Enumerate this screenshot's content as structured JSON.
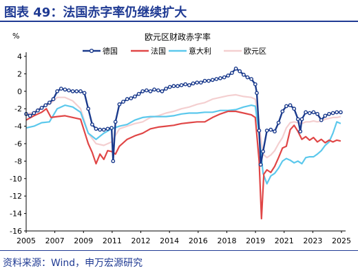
{
  "figure": {
    "title": "图表 49：法国赤字率仍继续扩大",
    "source": "资料来源：Wind，申万宏源研究",
    "unit": "%"
  },
  "colors": {
    "brand": "#1f3a93",
    "germany": "#1a3a8c",
    "france": "#e04646",
    "italy": "#5bc8ec",
    "eurozone": "#f4cfd0"
  },
  "chart_data": {
    "type": "line",
    "title": "欧元区财政赤字率",
    "xlabel": "",
    "ylabel": "%",
    "xlim": [
      2005.0,
      2025.3
    ],
    "ylim": [
      -16,
      4
    ],
    "xticks": [
      "2005",
      "2007",
      "2009",
      "2011",
      "2012",
      "2014",
      "2016",
      "2018",
      "2019",
      "2021",
      "2023",
      "2025"
    ],
    "yticks": [
      4,
      2,
      0,
      -2,
      -4,
      -6,
      -8,
      -10,
      -12,
      -14,
      -16
    ],
    "grid": false,
    "legend_position": "top",
    "series": [
      {
        "name": "德国",
        "color": "#1a3a8c",
        "marker": "circle",
        "points": [
          [
            2005.0,
            -2.6
          ],
          [
            2005.25,
            -2.8
          ],
          [
            2005.5,
            -2.5
          ],
          [
            2005.75,
            -2.2
          ],
          [
            2006.0,
            -1.9
          ],
          [
            2006.25,
            -1.6
          ],
          [
            2006.5,
            -1.3
          ],
          [
            2006.75,
            -0.9
          ],
          [
            2007.0,
            0.0
          ],
          [
            2007.25,
            0.3
          ],
          [
            2007.5,
            0.2
          ],
          [
            2007.75,
            0.1
          ],
          [
            2008.0,
            0.0
          ],
          [
            2008.25,
            0.0
          ],
          [
            2008.5,
            0.0
          ],
          [
            2008.75,
            -0.2
          ],
          [
            2009.0,
            -2.0
          ],
          [
            2009.25,
            -3.8
          ],
          [
            2009.5,
            -4.3
          ],
          [
            2009.75,
            -4.4
          ],
          [
            2010.0,
            -4.4
          ],
          [
            2010.25,
            -4.3
          ],
          [
            2010.5,
            -4.2
          ],
          [
            2010.6,
            -8.0
          ],
          [
            2010.75,
            -3.5
          ],
          [
            2011.0,
            -1.5
          ],
          [
            2011.25,
            -1.2
          ],
          [
            2011.5,
            -0.9
          ],
          [
            2011.75,
            -0.8
          ],
          [
            2012.0,
            -0.6
          ],
          [
            2012.25,
            -0.3
          ],
          [
            2012.5,
            0.0
          ],
          [
            2012.75,
            0.1
          ],
          [
            2013.0,
            0.0
          ],
          [
            2013.25,
            0.2
          ],
          [
            2013.5,
            0.1
          ],
          [
            2013.75,
            0.0
          ],
          [
            2014.0,
            0.3
          ],
          [
            2014.25,
            0.5
          ],
          [
            2014.5,
            0.6
          ],
          [
            2014.75,
            0.6
          ],
          [
            2015.0,
            0.7
          ],
          [
            2015.25,
            0.8
          ],
          [
            2015.5,
            0.7
          ],
          [
            2015.75,
            0.9
          ],
          [
            2016.0,
            1.0
          ],
          [
            2016.25,
            1.0
          ],
          [
            2016.5,
            1.2
          ],
          [
            2016.75,
            1.2
          ],
          [
            2017.0,
            1.3
          ],
          [
            2017.25,
            1.4
          ],
          [
            2017.5,
            1.5
          ],
          [
            2017.75,
            1.6
          ],
          [
            2018.0,
            1.8
          ],
          [
            2018.25,
            2.1
          ],
          [
            2018.5,
            2.6
          ],
          [
            2018.75,
            2.3
          ],
          [
            2019.0,
            1.9
          ],
          [
            2019.25,
            1.6
          ],
          [
            2019.5,
            1.4
          ],
          [
            2019.75,
            0.8
          ],
          [
            2019.85,
            -0.2
          ],
          [
            2020.0,
            -4.5
          ],
          [
            2020.1,
            -8.4
          ],
          [
            2020.25,
            -6.9
          ],
          [
            2020.5,
            -4.5
          ],
          [
            2020.75,
            -4.4
          ],
          [
            2021.0,
            -4.6
          ],
          [
            2021.25,
            -3.6
          ],
          [
            2021.5,
            -2.3
          ],
          [
            2021.75,
            -1.7
          ],
          [
            2022.0,
            -1.6
          ],
          [
            2022.25,
            -2.0
          ],
          [
            2022.5,
            -3.2
          ],
          [
            2022.65,
            -4.6
          ],
          [
            2022.75,
            -3.2
          ],
          [
            2023.0,
            -2.4
          ],
          [
            2023.25,
            -2.5
          ],
          [
            2023.5,
            -2.4
          ],
          [
            2023.75,
            -2.6
          ],
          [
            2024.0,
            -3.3
          ],
          [
            2024.25,
            -2.8
          ],
          [
            2024.5,
            -2.6
          ],
          [
            2024.75,
            -2.5
          ],
          [
            2025.0,
            -2.4
          ],
          [
            2025.25,
            -2.4
          ]
        ]
      },
      {
        "name": "法国",
        "color": "#e04646",
        "marker": "none",
        "points": [
          [
            2005.0,
            -3.3
          ],
          [
            2005.5,
            -2.8
          ],
          [
            2006.0,
            -2.4
          ],
          [
            2006.3,
            -2.0
          ],
          [
            2006.6,
            -3.0
          ],
          [
            2007.0,
            -2.9
          ],
          [
            2007.5,
            -2.8
          ],
          [
            2008.0,
            -3.0
          ],
          [
            2008.5,
            -3.2
          ],
          [
            2009.0,
            -6.0
          ],
          [
            2009.25,
            -7.0
          ],
          [
            2009.5,
            -8.3
          ],
          [
            2009.75,
            -7.2
          ],
          [
            2010.0,
            -7.8
          ],
          [
            2010.25,
            -6.8
          ],
          [
            2010.5,
            -6.9
          ],
          [
            2010.75,
            -7.2
          ],
          [
            2011.0,
            -6.3
          ],
          [
            2011.5,
            -5.5
          ],
          [
            2012.0,
            -5.1
          ],
          [
            2012.5,
            -4.8
          ],
          [
            2013.0,
            -4.3
          ],
          [
            2013.5,
            -4.1
          ],
          [
            2014.0,
            -4.0
          ],
          [
            2014.5,
            -3.9
          ],
          [
            2015.0,
            -3.7
          ],
          [
            2015.5,
            -3.6
          ],
          [
            2016.0,
            -3.5
          ],
          [
            2016.5,
            -3.5
          ],
          [
            2017.0,
            -3.0
          ],
          [
            2017.5,
            -2.6
          ],
          [
            2018.0,
            -2.3
          ],
          [
            2018.5,
            -2.3
          ],
          [
            2019.0,
            -2.5
          ],
          [
            2019.5,
            -2.7
          ],
          [
            2019.75,
            -3.0
          ],
          [
            2020.0,
            -8.0
          ],
          [
            2020.15,
            -14.6
          ],
          [
            2020.3,
            -9.5
          ],
          [
            2020.5,
            -9.0
          ],
          [
            2020.75,
            -9.3
          ],
          [
            2021.0,
            -8.6
          ],
          [
            2021.25,
            -7.6
          ],
          [
            2021.5,
            -6.5
          ],
          [
            2021.75,
            -6.3
          ],
          [
            2022.0,
            -4.4
          ],
          [
            2022.25,
            -3.9
          ],
          [
            2022.5,
            -4.6
          ],
          [
            2022.75,
            -5.5
          ],
          [
            2023.0,
            -5.2
          ],
          [
            2023.25,
            -5.6
          ],
          [
            2023.5,
            -5.3
          ],
          [
            2023.75,
            -5.8
          ],
          [
            2024.0,
            -5.5
          ],
          [
            2024.25,
            -5.9
          ],
          [
            2024.5,
            -5.6
          ],
          [
            2024.75,
            -5.8
          ],
          [
            2025.0,
            -5.6
          ],
          [
            2025.25,
            -5.7
          ]
        ]
      },
      {
        "name": "意大利",
        "color": "#5bc8ec",
        "marker": "none",
        "points": [
          [
            2005.0,
            -4.2
          ],
          [
            2005.5,
            -4.0
          ],
          [
            2006.0,
            -3.6
          ],
          [
            2006.5,
            -3.5
          ],
          [
            2007.0,
            -2.0
          ],
          [
            2007.5,
            -1.6
          ],
          [
            2008.0,
            -1.8
          ],
          [
            2008.5,
            -2.4
          ],
          [
            2009.0,
            -4.8
          ],
          [
            2009.5,
            -5.5
          ],
          [
            2010.0,
            -4.8
          ],
          [
            2010.5,
            -4.3
          ],
          [
            2011.0,
            -4.0
          ],
          [
            2011.5,
            -3.8
          ],
          [
            2012.0,
            -3.3
          ],
          [
            2012.5,
            -3.0
          ],
          [
            2013.0,
            -2.9
          ],
          [
            2013.5,
            -2.9
          ],
          [
            2014.0,
            -2.9
          ],
          [
            2014.5,
            -2.8
          ],
          [
            2015.0,
            -2.6
          ],
          [
            2015.5,
            -2.5
          ],
          [
            2016.0,
            -2.5
          ],
          [
            2016.5,
            -2.4
          ],
          [
            2017.0,
            -2.4
          ],
          [
            2017.5,
            -2.2
          ],
          [
            2018.0,
            -2.2
          ],
          [
            2018.5,
            -2.1
          ],
          [
            2019.0,
            -1.8
          ],
          [
            2019.5,
            -1.6
          ],
          [
            2019.75,
            -1.7
          ],
          [
            2020.0,
            -5.0
          ],
          [
            2020.25,
            -9.4
          ],
          [
            2020.5,
            -10.6
          ],
          [
            2020.75,
            -9.7
          ],
          [
            2021.0,
            -9.4
          ],
          [
            2021.25,
            -8.8
          ],
          [
            2021.5,
            -8.0
          ],
          [
            2021.75,
            -7.7
          ],
          [
            2022.0,
            -7.9
          ],
          [
            2022.25,
            -8.2
          ],
          [
            2022.5,
            -8.0
          ],
          [
            2022.75,
            -8.3
          ],
          [
            2023.0,
            -7.6
          ],
          [
            2023.25,
            -7.5
          ],
          [
            2023.5,
            -7.5
          ],
          [
            2023.75,
            -7.2
          ],
          [
            2024.0,
            -6.8
          ],
          [
            2024.25,
            -6.2
          ],
          [
            2024.5,
            -5.8
          ],
          [
            2024.75,
            -4.8
          ],
          [
            2025.0,
            -3.5
          ],
          [
            2025.25,
            -3.7
          ]
        ]
      },
      {
        "name": "欧元区",
        "color": "#f4cfd0",
        "marker": "none",
        "points": [
          [
            2005.0,
            -2.6
          ],
          [
            2005.5,
            -2.4
          ],
          [
            2006.0,
            -1.8
          ],
          [
            2006.5,
            -1.5
          ],
          [
            2007.0,
            -0.7
          ],
          [
            2007.5,
            -0.7
          ],
          [
            2008.0,
            -1.1
          ],
          [
            2008.5,
            -2.0
          ],
          [
            2009.0,
            -4.8
          ],
          [
            2009.5,
            -6.0
          ],
          [
            2010.0,
            -6.2
          ],
          [
            2010.5,
            -5.8
          ],
          [
            2011.0,
            -4.3
          ],
          [
            2011.5,
            -4.0
          ],
          [
            2012.0,
            -3.7
          ],
          [
            2012.5,
            -3.5
          ],
          [
            2013.0,
            -3.0
          ],
          [
            2013.5,
            -2.8
          ],
          [
            2014.0,
            -2.5
          ],
          [
            2014.5,
            -2.3
          ],
          [
            2015.0,
            -2.0
          ],
          [
            2015.5,
            -1.8
          ],
          [
            2016.0,
            -1.5
          ],
          [
            2016.5,
            -1.3
          ],
          [
            2017.0,
            -0.9
          ],
          [
            2017.5,
            -0.7
          ],
          [
            2018.0,
            -0.5
          ],
          [
            2018.5,
            -0.4
          ],
          [
            2019.0,
            -0.6
          ],
          [
            2019.5,
            -0.7
          ],
          [
            2019.75,
            -0.9
          ],
          [
            2020.0,
            -4.0
          ],
          [
            2020.25,
            -7.2
          ],
          [
            2020.5,
            -7.6
          ],
          [
            2020.75,
            -7.3
          ],
          [
            2021.0,
            -6.8
          ],
          [
            2021.25,
            -6.0
          ],
          [
            2021.5,
            -5.3
          ],
          [
            2021.75,
            -4.2
          ],
          [
            2022.0,
            -3.6
          ],
          [
            2022.25,
            -3.5
          ],
          [
            2022.5,
            -3.6
          ],
          [
            2022.75,
            -3.7
          ],
          [
            2023.0,
            -3.5
          ],
          [
            2023.25,
            -3.5
          ],
          [
            2023.5,
            -3.4
          ],
          [
            2023.75,
            -3.5
          ],
          [
            2024.0,
            -3.4
          ],
          [
            2024.25,
            -3.2
          ],
          [
            2024.5,
            -3.1
          ],
          [
            2024.75,
            -3.0
          ],
          [
            2025.0,
            -3.0
          ],
          [
            2025.25,
            -2.9
          ]
        ]
      }
    ]
  }
}
